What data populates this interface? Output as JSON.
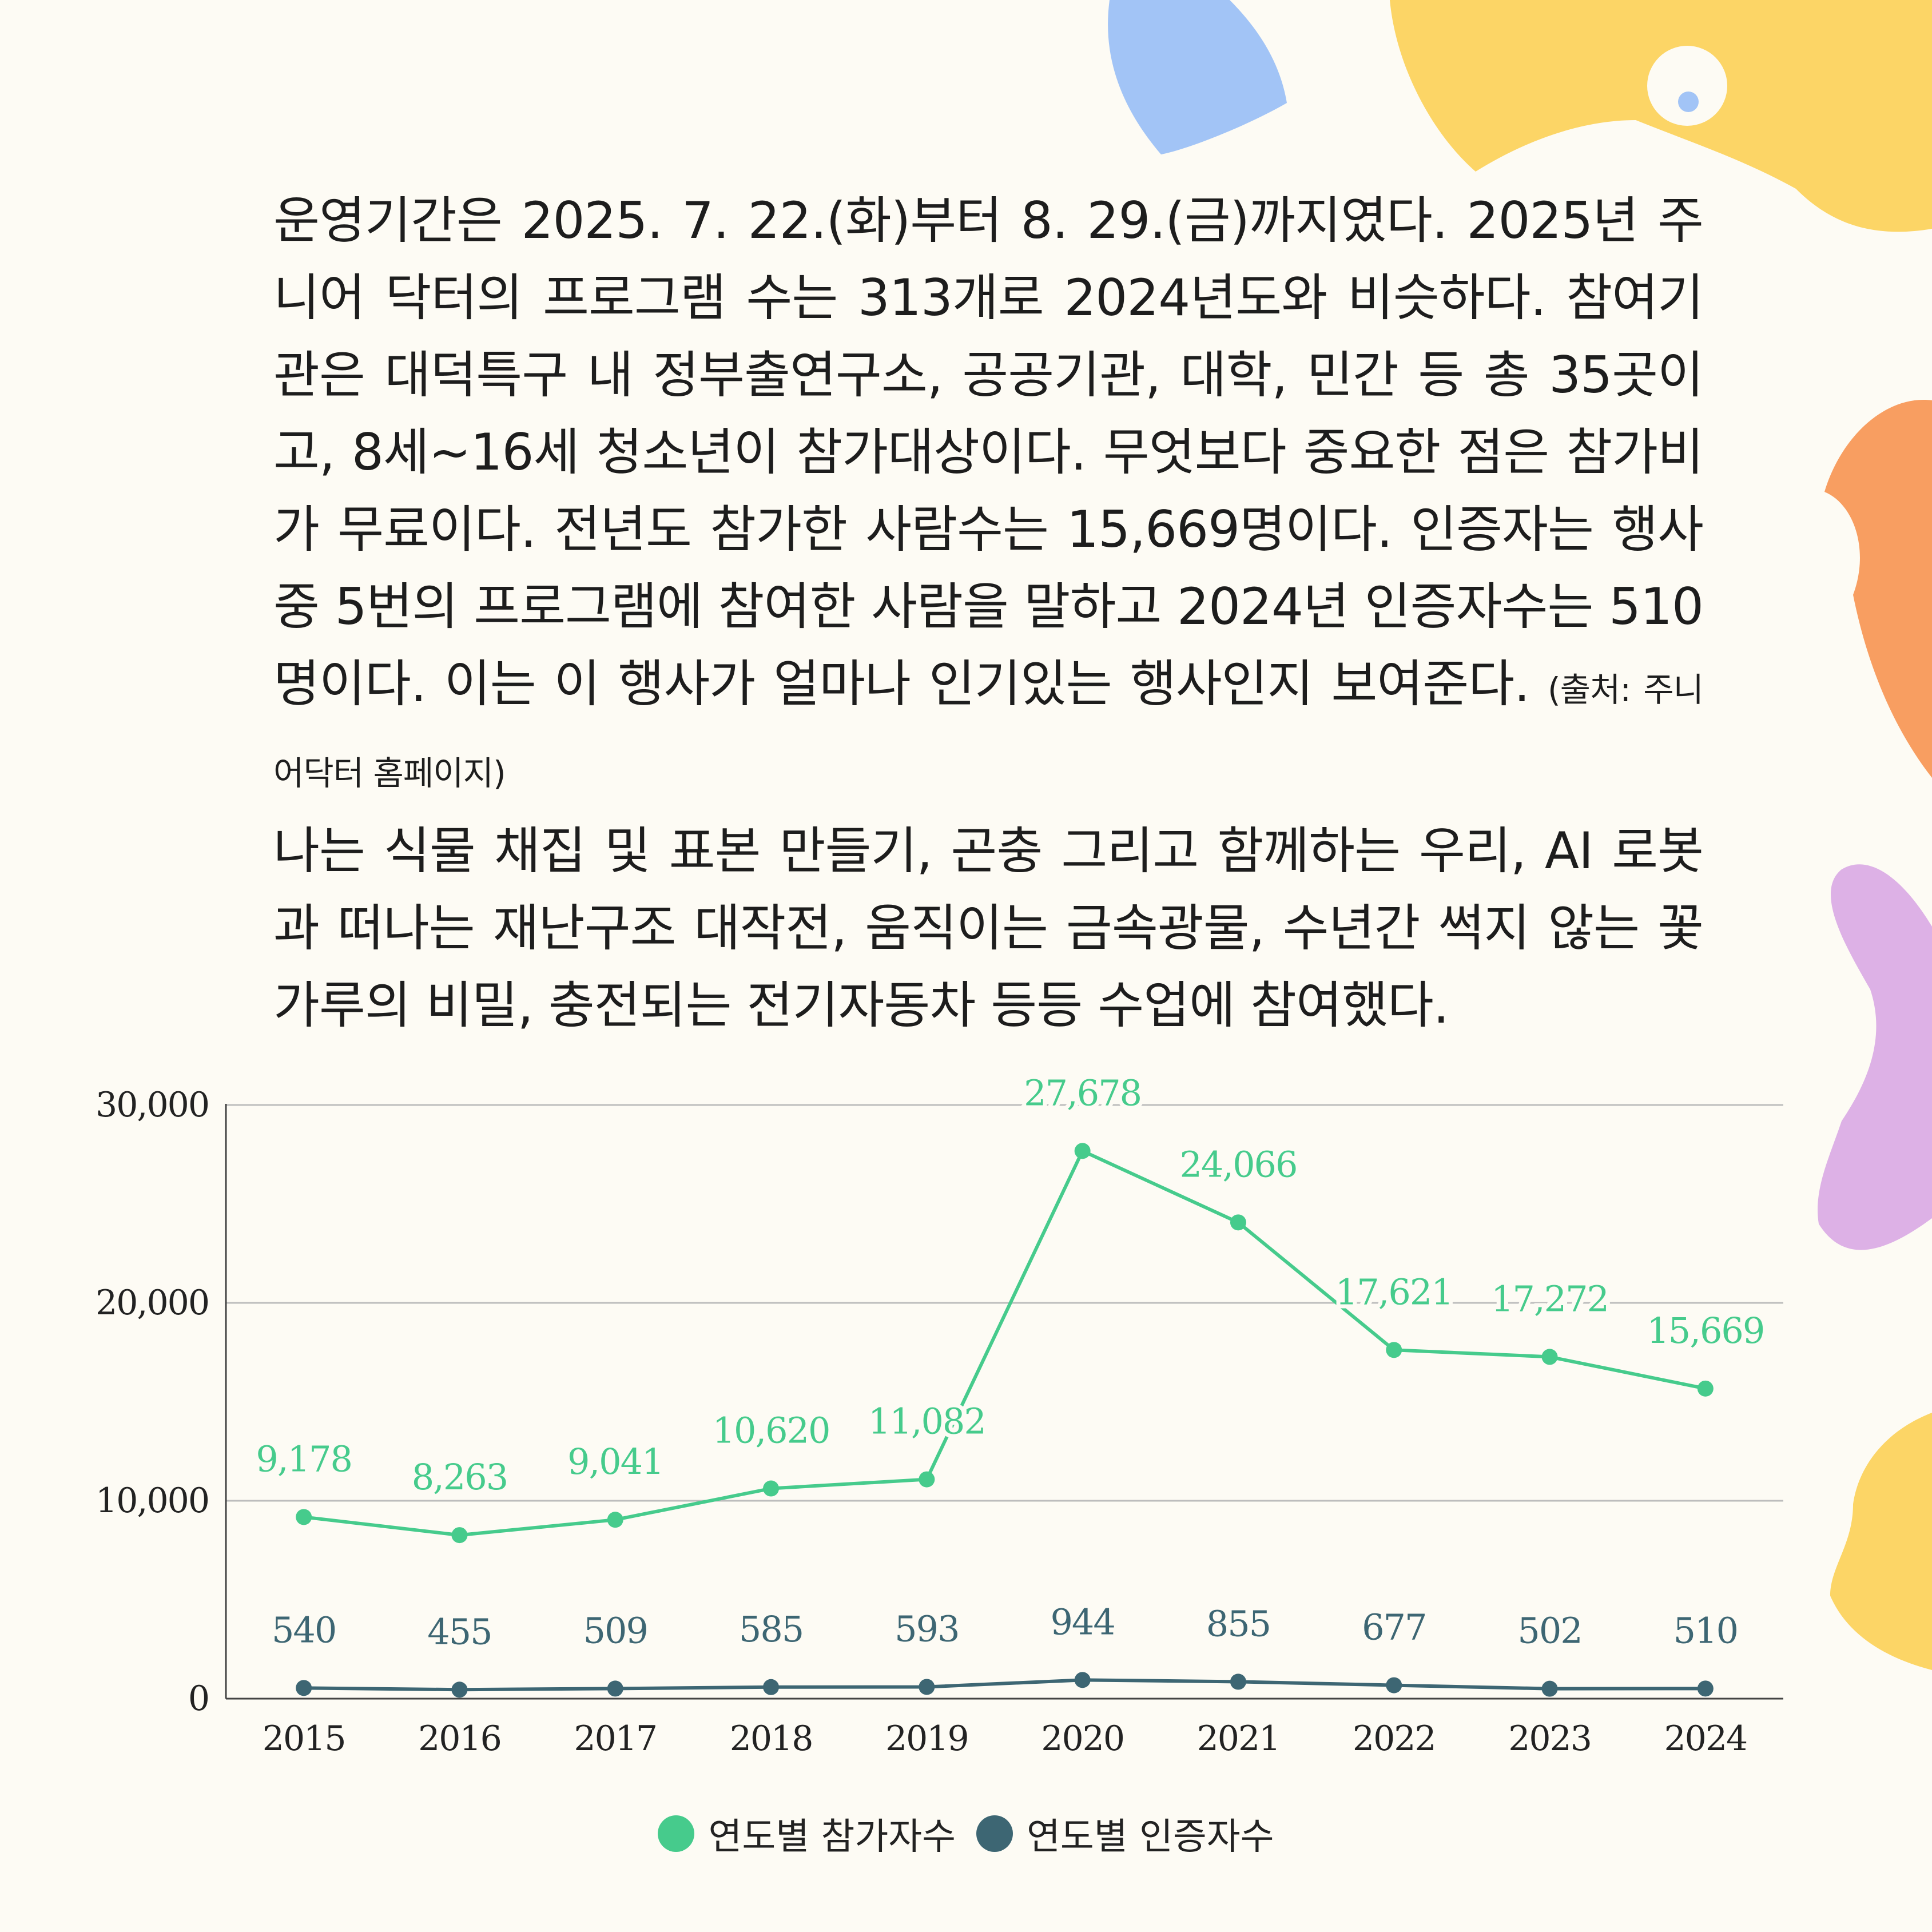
{
  "paragraph1": " 운영기간은 2025. 7. 22.(화)부터 8. 29.(금)까지였다. 2025년 주니어 닥터의 프로그램 수는 313개로 2024년도와 비슷하다. 참여기관은 대덕특구 내 정부출연구소, 공공기관, 대학, 민간 등 총 35곳이고, 8세~16세 청소년이 참가대상이다. 무엇보다 중요한 점은 참가비가 무료이다. 전년도 참가한 사람수는 15,669명이다. 인증자는 행사 중 5번의 프로그램에 참여한 사람을 말하고 2024년 인증자수는 510명이다. 이는 이 행사가 얼마나 인기있는 행사인지 보여준다.",
  "source_note": "(출처: 주니어닥터 홈페이지)",
  "paragraph2": "나는 식물 채집 및 표본 만들기, 곤충 그리고 함께하는 우리, AI 로봇과 떠나는 재난구조 대작전, 움직이는 금속광물, 수년간 썩지 않는 꽃가루의 비밀, 충전되는 전기자동차 등등 수업에 참여했다.",
  "colors": {
    "background": "#fdfbf4",
    "blob_blue": "#a2c4f6",
    "blob_yellow": "#fcd566",
    "blob_orange": "#f89e61",
    "blob_purple": "#ddb1e6",
    "series_participants": "#46cb8c",
    "series_certified": "#3d6673"
  },
  "chart_data": {
    "type": "line",
    "categories": [
      "2015",
      "2016",
      "2017",
      "2018",
      "2019",
      "2020",
      "2021",
      "2022",
      "2023",
      "2024"
    ],
    "ylim": [
      0,
      30000
    ],
    "yticks": [
      0,
      10000,
      20000,
      30000
    ],
    "ytick_labels": [
      "0",
      "10,000",
      "20,000",
      "30,000"
    ],
    "grid": "horizontal",
    "legend_position": "bottom",
    "series": [
      {
        "name": "연도별 참가자수",
        "values": [
          9178,
          8263,
          9041,
          10620,
          11082,
          27678,
          24066,
          17621,
          17272,
          15669
        ],
        "labels": [
          "9,178",
          "8,263",
          "9,041",
          "10,620",
          "11,082",
          "27,678",
          "24,066",
          "17,621",
          "17,272",
          "15,669"
        ]
      },
      {
        "name": "연도별 인증자수",
        "values": [
          540,
          455,
          509,
          585,
          593,
          944,
          855,
          677,
          502,
          510
        ],
        "labels": [
          "540",
          "455",
          "509",
          "585",
          "593",
          "944",
          "855",
          "677",
          "502",
          "510"
        ]
      }
    ]
  }
}
